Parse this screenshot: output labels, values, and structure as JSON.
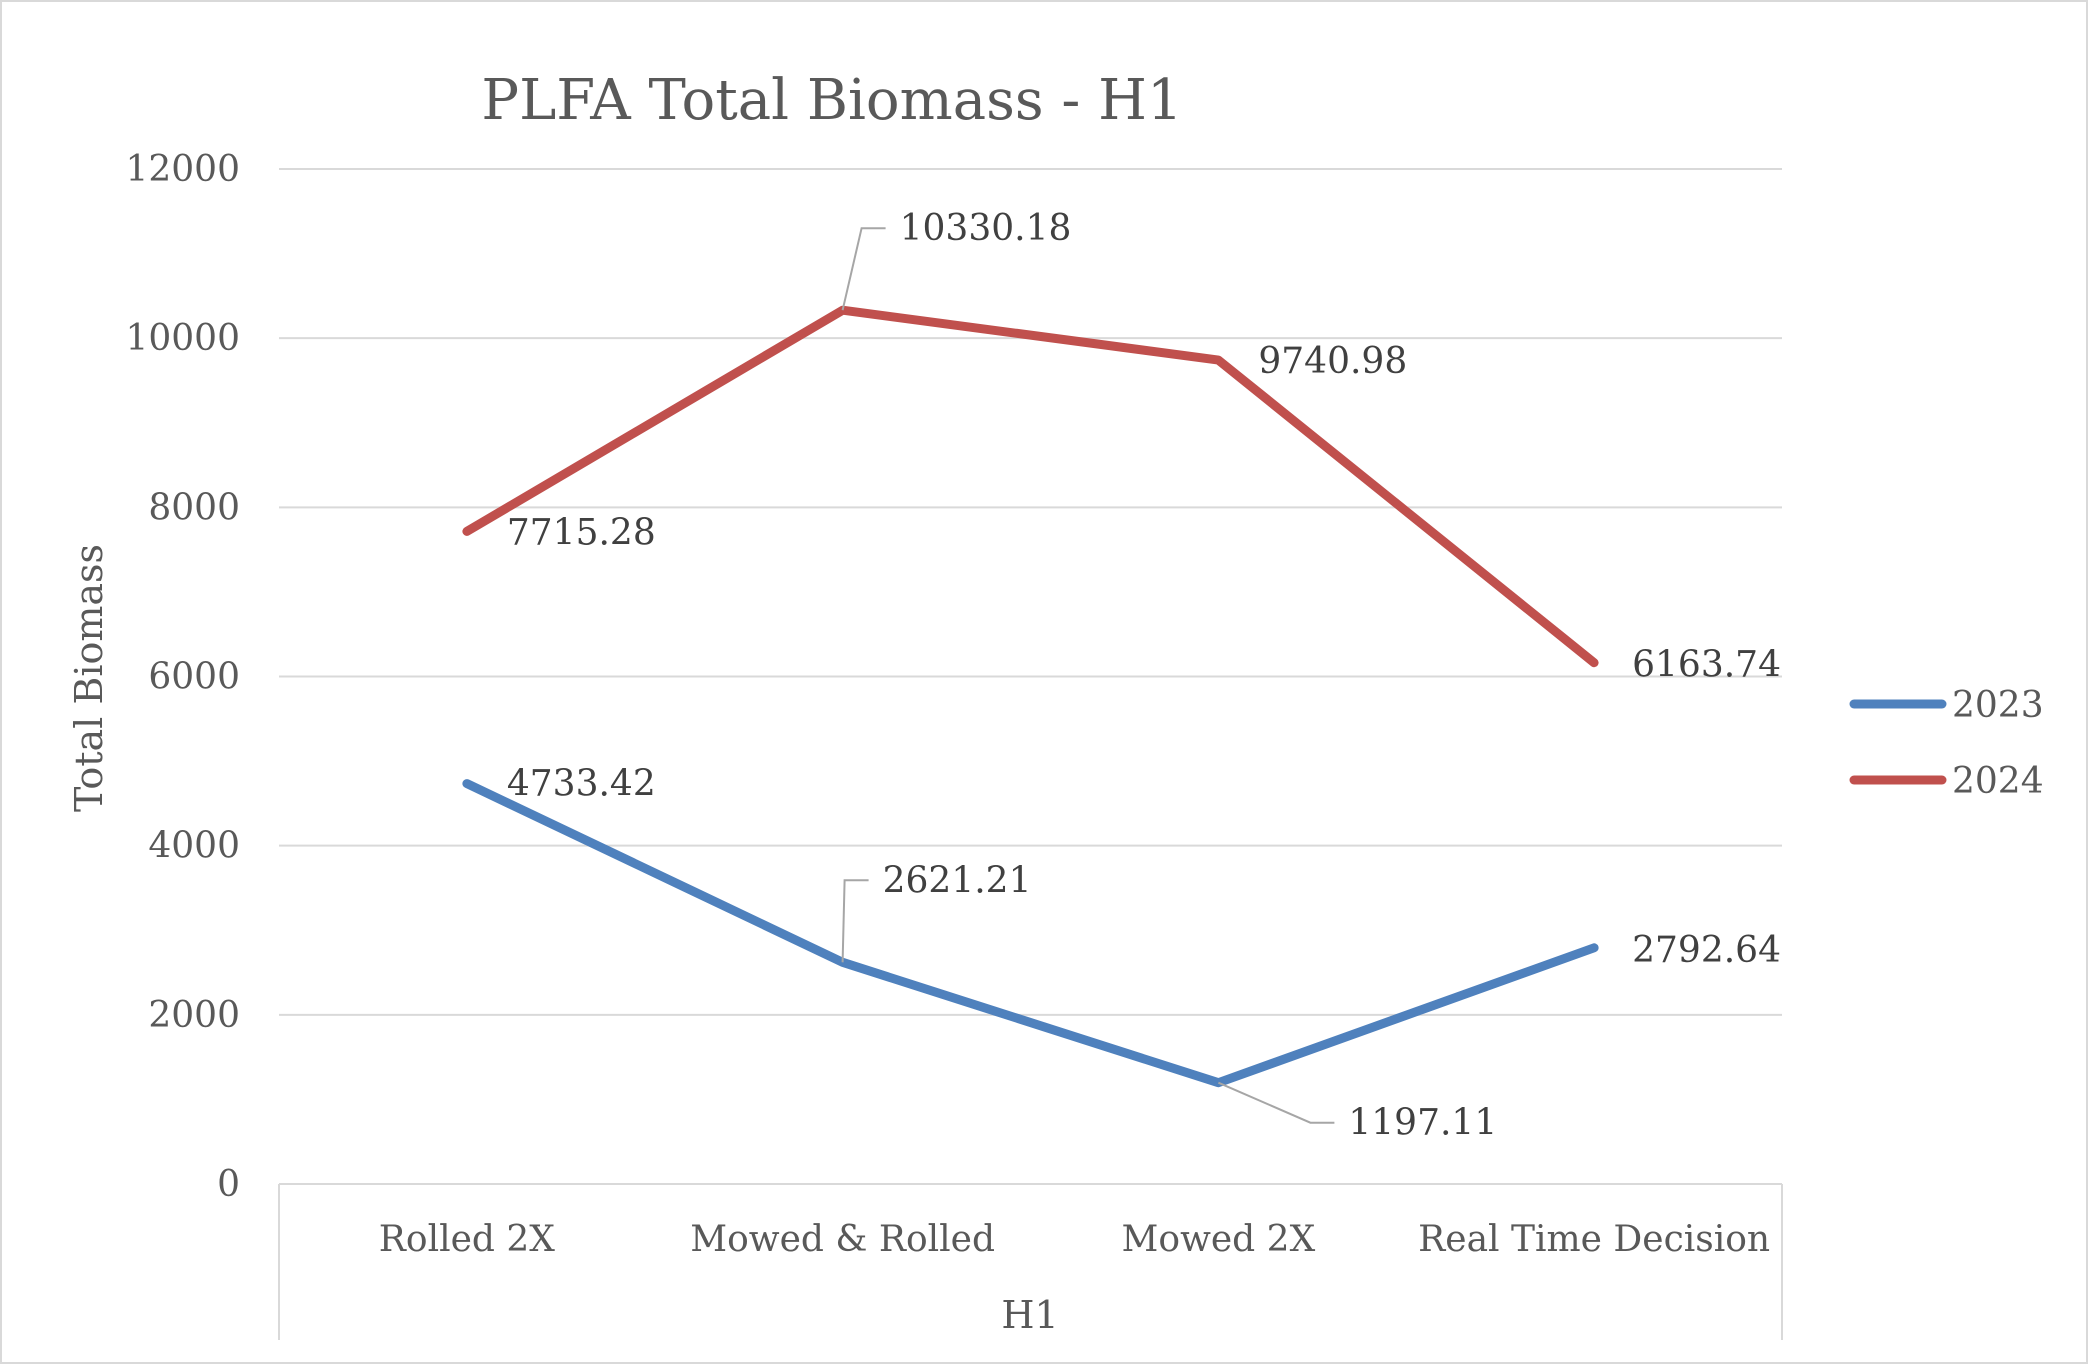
{
  "chart_data": {
    "type": "line",
    "title": "PLFA Total Biomass - H1",
    "xlabel": "H1",
    "ylabel": "Total Biomass",
    "categories": [
      "Rolled 2X",
      "Mowed & Rolled",
      "Mowed 2X",
      "Real Time Decision"
    ],
    "ylim": [
      0,
      12000
    ],
    "yticks": [
      0,
      2000,
      4000,
      6000,
      8000,
      10000,
      12000
    ],
    "grid": true,
    "legend_position": "right",
    "series": [
      {
        "name": "2023",
        "color": "#4f81bd",
        "values": [
          4733.42,
          2621.21,
          1197.11,
          2792.64
        ],
        "labels": [
          "4733.42",
          "2621.21",
          "1197.11",
          "2792.64"
        ]
      },
      {
        "name": "2024",
        "color": "#c0504d",
        "values": [
          7715.28,
          10330.18,
          9740.98,
          6163.74
        ],
        "labels": [
          "7715.28",
          "10330.18",
          "9740.98",
          "6163.74"
        ]
      }
    ]
  }
}
